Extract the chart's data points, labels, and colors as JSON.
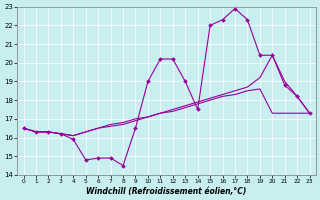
{
  "xlabel": "Windchill (Refroidissement éolien,°C)",
  "bg_color": "#c8eef0",
  "line_color": "#990099",
  "grid_color": "#ffffff",
  "xmin": 0,
  "xmax": 23,
  "ymin": 14,
  "ymax": 23,
  "hours": [
    0,
    1,
    2,
    3,
    4,
    5,
    6,
    7,
    8,
    9,
    10,
    11,
    12,
    13,
    14,
    15,
    16,
    17,
    18,
    19,
    20,
    21,
    22,
    23
  ],
  "line1_temp": [
    16.5,
    16.3,
    16.3,
    16.2,
    15.9,
    14.8,
    14.9,
    14.9,
    14.5,
    16.5,
    19.0,
    20.2,
    20.2,
    19.0,
    17.5,
    22.0,
    22.3,
    22.9,
    22.3,
    20.4,
    20.4,
    18.8,
    18.2,
    17.3
  ],
  "line2_smooth": [
    16.5,
    16.3,
    16.3,
    16.2,
    16.1,
    16.3,
    16.5,
    16.6,
    16.7,
    16.9,
    17.1,
    17.3,
    17.5,
    17.7,
    17.9,
    18.1,
    18.3,
    18.5,
    18.7,
    19.2,
    20.4,
    19.0,
    18.2,
    17.3
  ],
  "line3_smooth": [
    16.5,
    16.3,
    16.3,
    16.2,
    16.1,
    16.3,
    16.5,
    16.7,
    16.8,
    17.0,
    17.1,
    17.3,
    17.4,
    17.6,
    17.8,
    18.0,
    18.2,
    18.3,
    18.5,
    18.6,
    17.3,
    17.3,
    17.3,
    17.3
  ]
}
